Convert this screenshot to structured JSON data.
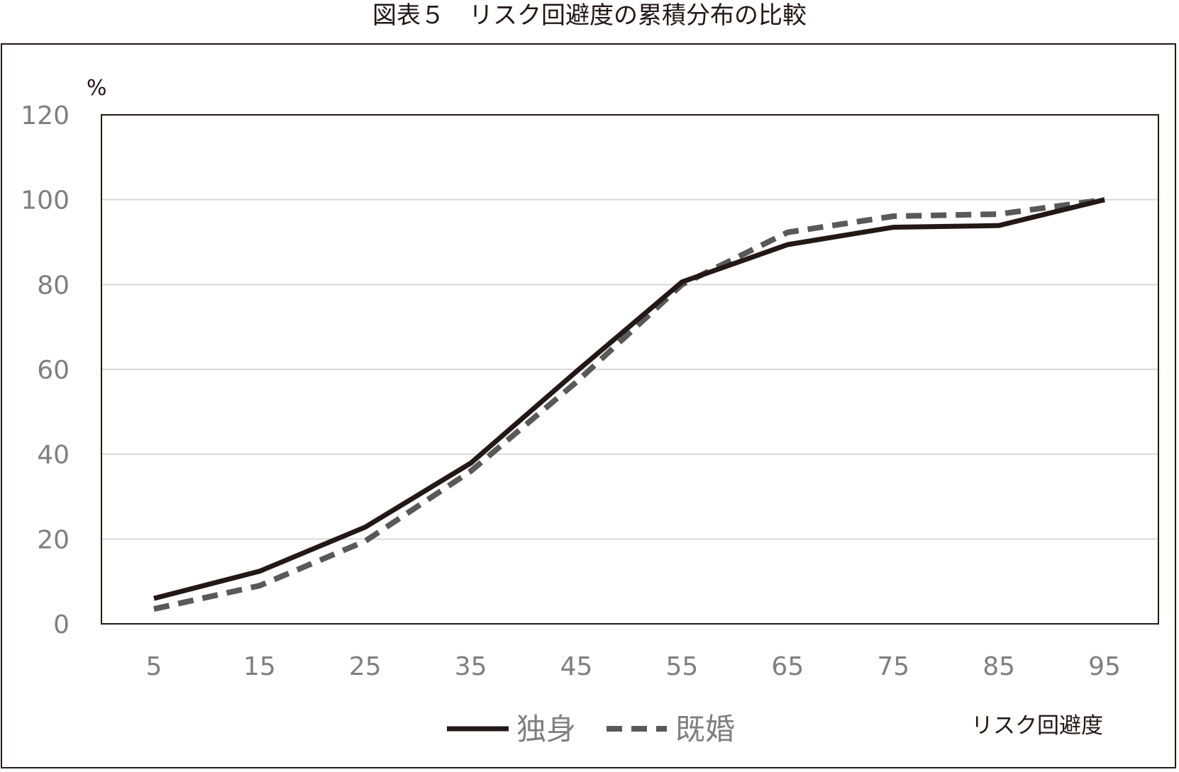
{
  "chart_data": {
    "type": "line",
    "title": "図表５　リスク回避度の累積分布の比較",
    "y_unit": "%",
    "xlabel": "リスク回避度",
    "ylabel": "",
    "x": [
      5,
      15,
      25,
      35,
      45,
      55,
      65,
      75,
      85,
      95
    ],
    "ylim": [
      0,
      120
    ],
    "yticks": [
      0,
      20,
      40,
      60,
      80,
      100,
      120
    ],
    "grid": true,
    "legend_position": "bottom",
    "series": [
      {
        "name": "独身",
        "style": "solid",
        "color": "#231815",
        "values": [
          6.0,
          12.4,
          22.8,
          37.9,
          59.5,
          80.6,
          89.4,
          93.5,
          93.9,
          100
        ]
      },
      {
        "name": "既婚",
        "style": "dashed",
        "color": "#595959",
        "values": [
          3.5,
          9.0,
          19.5,
          36.0,
          57.0,
          80.0,
          92.3,
          96.1,
          96.6,
          100
        ]
      }
    ]
  }
}
